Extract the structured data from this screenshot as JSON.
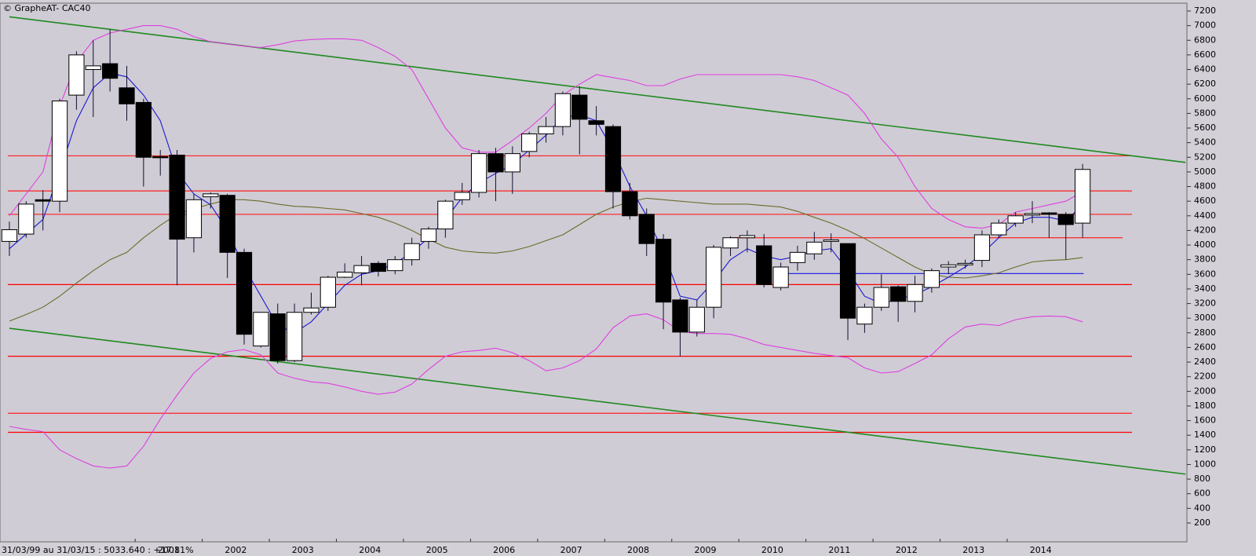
{
  "chart_data": {
    "type": "candlestick",
    "title": "© GrapheAT- CAC40",
    "footnote": "31/03/99 au 31/03/15 : 5033.640 : +17.81%",
    "background": "#cfccd5",
    "up_color": "#ffffff",
    "down_color": "#000000",
    "wick_color": "#101030",
    "xlim": [
      1998.985,
      2016.68
    ],
    "ylim": [
      0,
      7300
    ],
    "xticks": [
      2001,
      2002,
      2003,
      2004,
      2005,
      2006,
      2007,
      2008,
      2009,
      2010,
      2011,
      2012,
      2013,
      2014
    ],
    "yticks": [
      200,
      400,
      600,
      800,
      1000,
      1200,
      1400,
      1600,
      1800,
      2000,
      2200,
      2400,
      2600,
      2800,
      3000,
      3200,
      3400,
      3600,
      3800,
      4000,
      4200,
      4400,
      4600,
      4800,
      5000,
      5200,
      5400,
      5600,
      5800,
      6000,
      6200,
      6400,
      6600,
      6800,
      7000,
      7200
    ],
    "x": [
      1999,
      1999.25,
      1999.5,
      1999.75,
      2000,
      2000.25,
      2000.5,
      2000.75,
      2001,
      2001.25,
      2001.5,
      2001.75,
      2002,
      2002.25,
      2002.5,
      2002.75,
      2003,
      2003.25,
      2003.5,
      2003.75,
      2004,
      2004.25,
      2004.5,
      2004.75,
      2005,
      2005.25,
      2005.5,
      2005.75,
      2006,
      2006.25,
      2006.5,
      2006.75,
      2007,
      2007.25,
      2007.5,
      2007.75,
      2008,
      2008.25,
      2008.5,
      2008.75,
      2009,
      2009.25,
      2009.5,
      2009.75,
      2010,
      2010.25,
      2010.5,
      2010.75,
      2011,
      2011.25,
      2011.5,
      2011.75,
      2012,
      2012.25,
      2012.5,
      2012.75,
      2013,
      2013.25,
      2013.5,
      2013.75,
      2014,
      2014.25,
      2014.5,
      2014.75,
      2015
    ],
    "open": [
      4050,
      4150,
      4620,
      4600,
      6050,
      6400,
      6480,
      6150,
      5950,
      5210,
      5230,
      4100,
      4660,
      4680,
      3900,
      2620,
      3060,
      2420,
      3080,
      3150,
      3560,
      3620,
      3750,
      3650,
      3800,
      4050,
      4220,
      4620,
      4720,
      5250,
      5000,
      5280,
      5520,
      5620,
      6050,
      5700,
      5620,
      4730,
      4420,
      4080,
      3250,
      2810,
      3150,
      3960,
      4100,
      3990,
      3420,
      3760,
      3880,
      4050,
      4020,
      2920,
      3150,
      3430,
      3230,
      3420,
      3700,
      3730,
      3790,
      4140,
      4300,
      4410,
      4440,
      4420,
      4300
    ],
    "high": [
      4320,
      4600,
      4750,
      6000,
      6650,
      6800,
      6950,
      6450,
      6000,
      5300,
      5300,
      4700,
      4720,
      4700,
      3950,
      3080,
      3200,
      3200,
      3350,
      3580,
      3750,
      3850,
      3780,
      3850,
      4100,
      4250,
      4620,
      4850,
      5300,
      5330,
      5350,
      5550,
      5750,
      6100,
      6170,
      5900,
      5650,
      4850,
      4500,
      4150,
      3280,
      3250,
      4000,
      4120,
      4200,
      4150,
      3760,
      3990,
      4180,
      4160,
      4020,
      3200,
      3600,
      3450,
      3580,
      3680,
      3780,
      3800,
      4200,
      4350,
      4450,
      4600,
      4450,
      4450,
      5110
    ],
    "low": [
      3850,
      4100,
      4200,
      4450,
      5850,
      5750,
      6100,
      5700,
      4800,
      4950,
      3450,
      3900,
      4500,
      3550,
      2640,
      2600,
      2380,
      2400,
      3050,
      3100,
      3550,
      3450,
      3570,
      3600,
      3720,
      3950,
      4100,
      4550,
      4650,
      4600,
      4700,
      5200,
      5400,
      5500,
      5240,
      5500,
      4500,
      4350,
      3850,
      2850,
      2480,
      2750,
      3000,
      3850,
      3900,
      3420,
      3380,
      3650,
      3800,
      3900,
      2700,
      2800,
      3100,
      2950,
      3080,
      3350,
      3600,
      3680,
      3700,
      4100,
      4250,
      4300,
      4100,
      3800,
      4100
    ],
    "close": [
      4210,
      4560,
      4600,
      5970,
      6600,
      6450,
      6280,
      5930,
      5200,
      5200,
      4080,
      4620,
      4700,
      3900,
      2780,
      3080,
      2420,
      3080,
      3140,
      3560,
      3630,
      3720,
      3640,
      3800,
      4020,
      4220,
      4600,
      4720,
      5250,
      5000,
      5250,
      5520,
      5620,
      6070,
      5720,
      5650,
      4730,
      4400,
      4020,
      3220,
      2810,
      3150,
      3970,
      4100,
      4130,
      3460,
      3700,
      3900,
      4040,
      4070,
      3000,
      3150,
      3420,
      3230,
      3460,
      3650,
      3730,
      3750,
      4140,
      4300,
      4400,
      4430,
      4420,
      4280,
      5034
    ],
    "lines": [
      {
        "color": "#e040e0",
        "values": [
          4400,
          4700,
          5000,
          5900,
          6500,
          6800,
          6900,
          6950,
          7000,
          7000,
          6950,
          6850,
          6780,
          6750,
          6720,
          6700,
          6740,
          6790,
          6810,
          6820,
          6820,
          6800,
          6700,
          6580,
          6400,
          6000,
          5600,
          5330,
          5270,
          5270,
          5430,
          5600,
          5800,
          6050,
          6200,
          6330,
          6290,
          6250,
          6180,
          6180,
          6270,
          6330,
          6330,
          6330,
          6330,
          6330,
          6330,
          6300,
          6250,
          6150,
          6050,
          5800,
          5450,
          5200,
          4800,
          4500,
          4350,
          4250,
          4230,
          4280,
          4450,
          4500,
          4550,
          4600,
          4730
        ]
      },
      {
        "color": "#e040e0",
        "values": [
          1520,
          1480,
          1450,
          1200,
          1080,
          980,
          950,
          980,
          1250,
          1620,
          1950,
          2250,
          2450,
          2540,
          2570,
          2500,
          2250,
          2180,
          2130,
          2110,
          2060,
          2000,
          1960,
          1990,
          2100,
          2300,
          2480,
          2540,
          2560,
          2590,
          2530,
          2420,
          2280,
          2320,
          2420,
          2580,
          2870,
          3030,
          3060,
          2980,
          2820,
          2790,
          2790,
          2780,
          2720,
          2640,
          2600,
          2560,
          2520,
          2490,
          2460,
          2320,
          2250,
          2270,
          2380,
          2500,
          2720,
          2880,
          2920,
          2900,
          2980,
          3020,
          3030,
          3020,
          2950
        ]
      },
      {
        "color": "#6b6b2a",
        "values": [
          2960,
          3050,
          3150,
          3300,
          3480,
          3650,
          3800,
          3900,
          4100,
          4270,
          4420,
          4500,
          4560,
          4620,
          4620,
          4600,
          4560,
          4530,
          4520,
          4500,
          4480,
          4430,
          4380,
          4300,
          4200,
          4080,
          3970,
          3920,
          3900,
          3890,
          3920,
          3980,
          4060,
          4140,
          4280,
          4420,
          4520,
          4590,
          4640,
          4620,
          4600,
          4580,
          4560,
          4560,
          4560,
          4540,
          4520,
          4460,
          4380,
          4300,
          4200,
          4090,
          3960,
          3830,
          3700,
          3600,
          3560,
          3550,
          3580,
          3620,
          3700,
          3770,
          3790,
          3800,
          3830
        ]
      },
      {
        "color": "#1a1ad0",
        "values": [
          3950,
          4150,
          4350,
          5000,
          5700,
          6150,
          6350,
          6300,
          6050,
          5700,
          5000,
          4700,
          4550,
          4200,
          3700,
          3300,
          2900,
          2800,
          2950,
          3200,
          3450,
          3600,
          3650,
          3750,
          3900,
          4100,
          4350,
          4650,
          4850,
          4980,
          5100,
          5300,
          5500,
          5750,
          5780,
          5700,
          5300,
          4800,
          4400,
          3900,
          3300,
          3250,
          3500,
          3800,
          3950,
          3850,
          3800,
          3850,
          3920,
          3950,
          3650,
          3300,
          3200,
          3260,
          3320,
          3430,
          3560,
          3700,
          3880,
          4100,
          4300,
          4380,
          4380,
          4330,
          4550
        ]
      }
    ],
    "trend_lines": [
      {
        "color": "#1f8a1f",
        "x": [
          1999.125,
          2016.66
        ],
        "values": [
          7120,
          5130
        ]
      },
      {
        "color": "#1f8a1f",
        "x": [
          1999.125,
          2016.66
        ],
        "values": [
          2862,
          868
        ]
      }
    ],
    "levels": [
      {
        "color": "#ff2020",
        "value": 5220
      },
      {
        "color": "#ff2020",
        "value": 4740
      },
      {
        "color": "#ff2020",
        "value": 4420
      },
      {
        "color": "#ff2020",
        "value": 4100,
        "x": [
          2009.87,
          2015.72
        ]
      },
      {
        "color": "#2a2ae0",
        "value": 3610,
        "x": [
          2010.51,
          2015.14
        ]
      },
      {
        "color": "#ff0000",
        "value": 3460
      },
      {
        "color": "#ff0000",
        "value": 2480
      },
      {
        "color": "#ff2020",
        "value": 1700
      },
      {
        "color": "#ff0000",
        "value": 1440
      }
    ]
  }
}
